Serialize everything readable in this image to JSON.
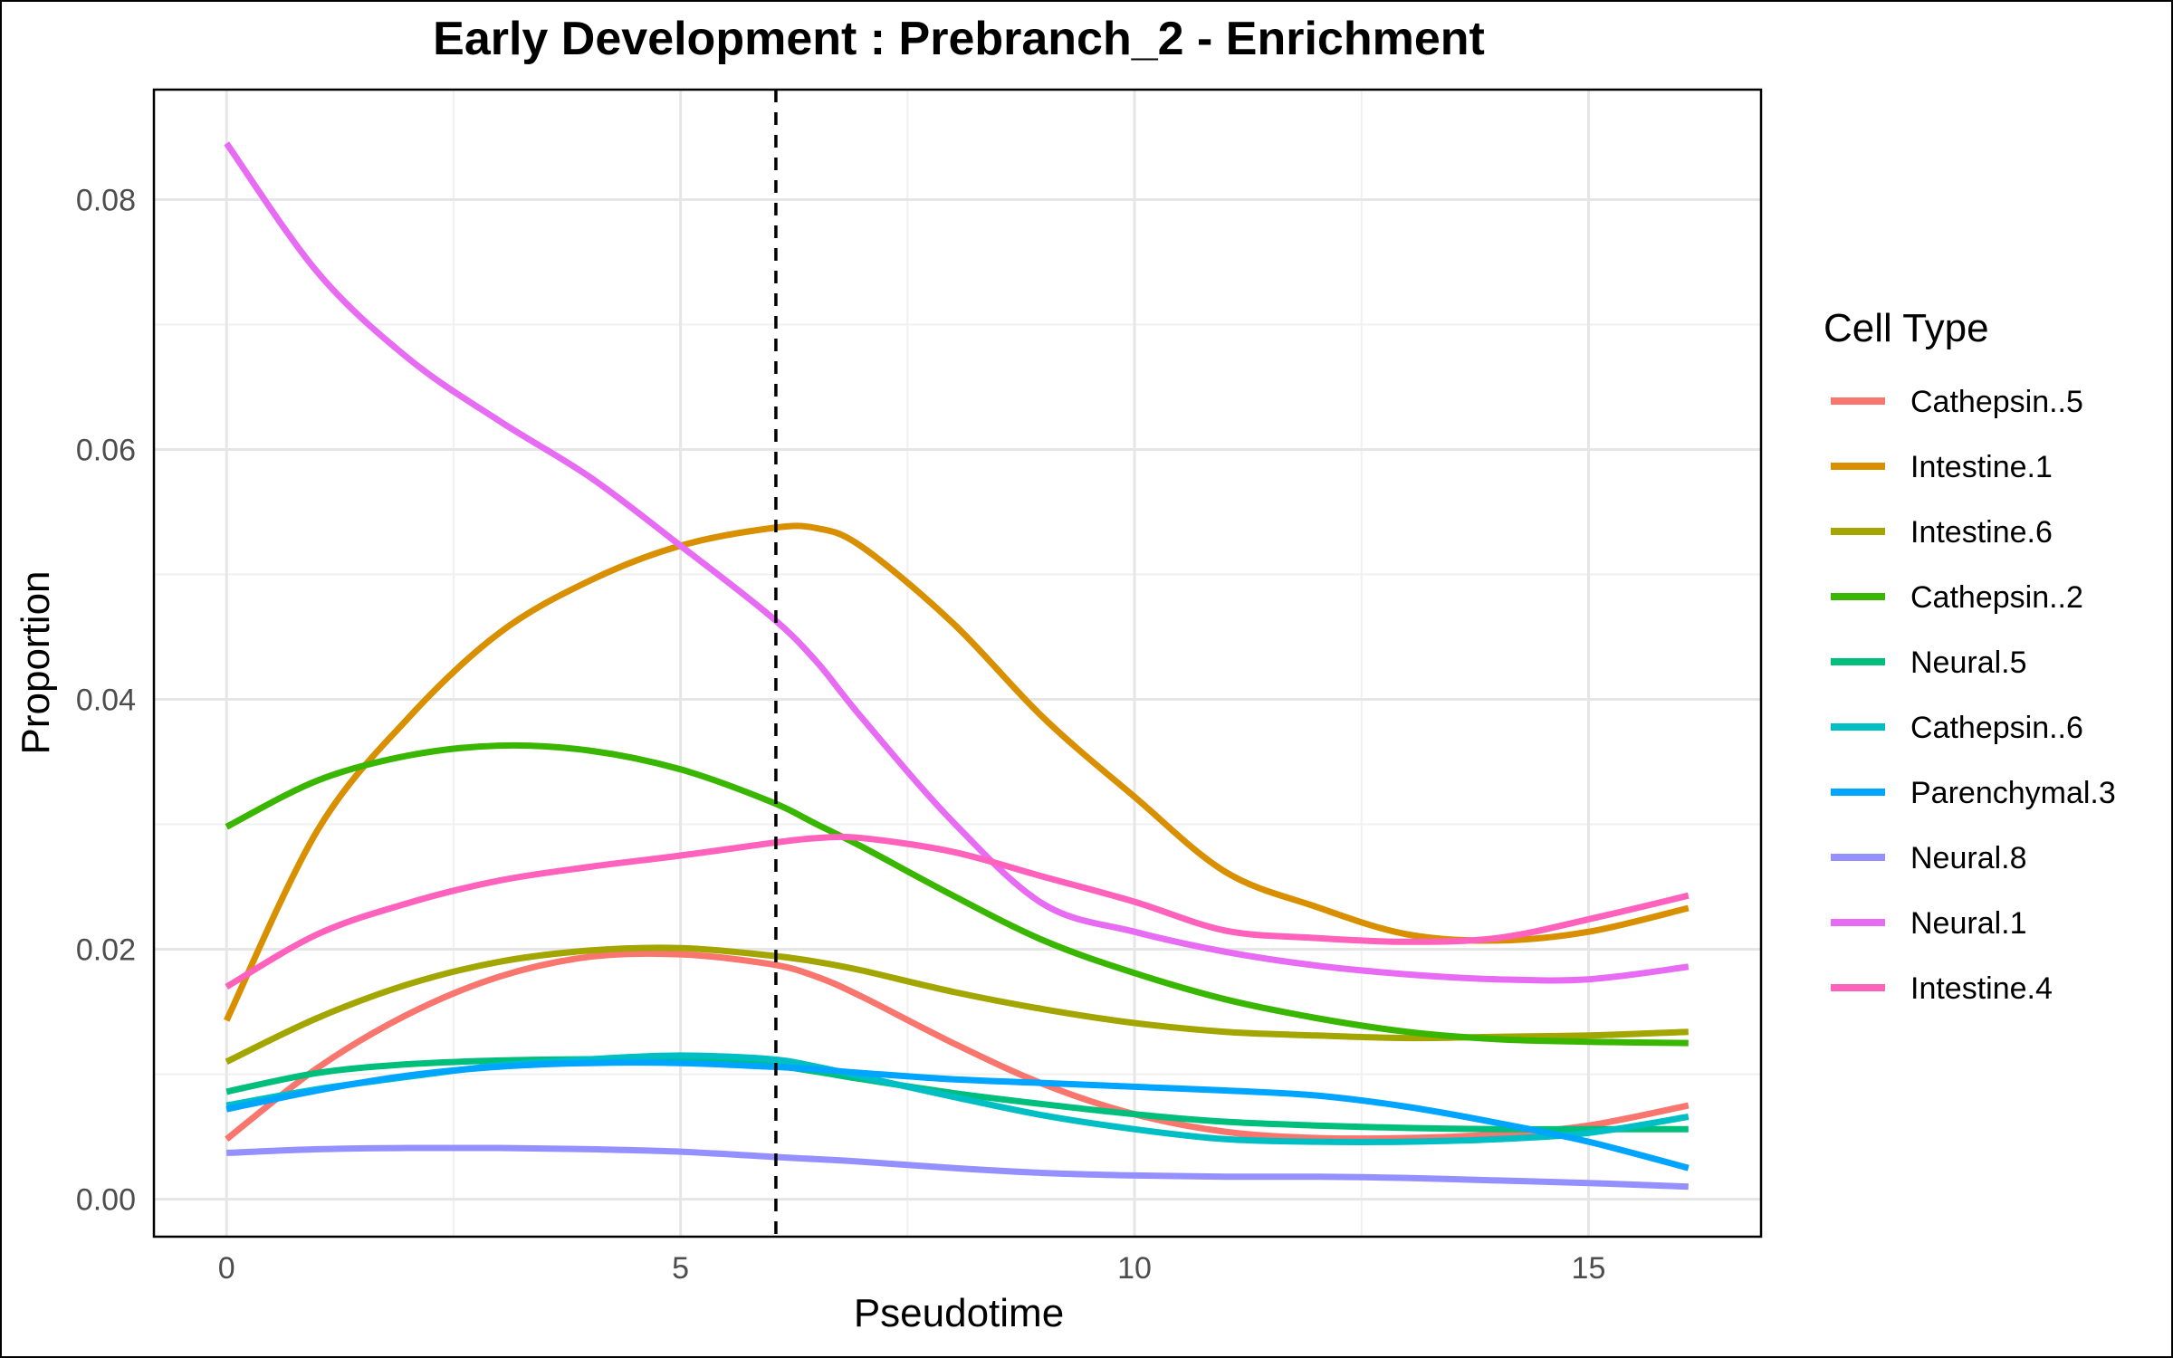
{
  "chart_data": {
    "type": "line",
    "title": "Early Development : Prebranch_2 - Enrichment",
    "xlabel": "Pseudotime",
    "ylabel": "Proportion",
    "xlim": [
      -0.8,
      16.9
    ],
    "ylim": [
      -0.003,
      0.0888
    ],
    "x_ticks": [
      0,
      5,
      10,
      15
    ],
    "x_tick_labels": [
      "0",
      "5",
      "10",
      "15"
    ],
    "y_ticks": [
      0,
      0.02,
      0.04,
      0.06,
      0.08
    ],
    "y_tick_labels": [
      "0.00",
      "0.02",
      "0.04",
      "0.06",
      "0.08"
    ],
    "grid": true,
    "vline": {
      "x": 6.05,
      "style": "dashed"
    },
    "legend": {
      "title": "Cell Type",
      "position": "right"
    },
    "x": [
      0,
      1,
      2,
      3,
      4,
      5,
      6,
      6.5,
      7,
      8,
      9,
      10,
      11,
      12,
      13,
      14,
      15,
      16.1
    ],
    "series": [
      {
        "name": "Cathepsin..5",
        "color": "#F8766D",
        "values": [
          0.0048,
          0.0105,
          0.0148,
          0.0178,
          0.0194,
          0.0196,
          0.0188,
          0.0178,
          0.0162,
          0.0125,
          0.0092,
          0.0068,
          0.0054,
          0.0049,
          0.0049,
          0.0052,
          0.0059,
          0.0075
        ]
      },
      {
        "name": "Intestine.1",
        "color": "#D89000",
        "values": [
          0.0143,
          0.0295,
          0.0385,
          0.0453,
          0.0495,
          0.0523,
          0.0537,
          0.0537,
          0.0522,
          0.0461,
          0.0385,
          0.0322,
          0.0262,
          0.0234,
          0.0212,
          0.0207,
          0.0214,
          0.0233
        ]
      },
      {
        "name": "Intestine.6",
        "color": "#A3A500",
        "values": [
          0.011,
          0.0145,
          0.0172,
          0.019,
          0.0199,
          0.0201,
          0.0195,
          0.019,
          0.0183,
          0.0166,
          0.0152,
          0.0141,
          0.0134,
          0.0131,
          0.0129,
          0.013,
          0.0131,
          0.0134
        ]
      },
      {
        "name": "Cathepsin..2",
        "color": "#39B600",
        "values": [
          0.0298,
          0.0335,
          0.0355,
          0.0363,
          0.0359,
          0.0344,
          0.0318,
          0.03,
          0.0282,
          0.0243,
          0.0207,
          0.0181,
          0.016,
          0.0145,
          0.0134,
          0.0128,
          0.0126,
          0.0125
        ]
      },
      {
        "name": "Neural.5",
        "color": "#00BF7D",
        "values": [
          0.0086,
          0.0101,
          0.0108,
          0.0111,
          0.0112,
          0.0112,
          0.0107,
          0.0102,
          0.0096,
          0.0085,
          0.0076,
          0.0068,
          0.0062,
          0.0059,
          0.0057,
          0.0056,
          0.0056,
          0.0056
        ]
      },
      {
        "name": "Cathepsin..6",
        "color": "#00BFC4",
        "values": [
          0.0075,
          0.0088,
          0.0098,
          0.0107,
          0.0112,
          0.0115,
          0.0112,
          0.0106,
          0.0098,
          0.0082,
          0.0067,
          0.0056,
          0.0048,
          0.0046,
          0.0046,
          0.0048,
          0.0053,
          0.0066
        ]
      },
      {
        "name": "Parenchymal.3",
        "color": "#00A5FF",
        "values": [
          0.0072,
          0.0087,
          0.0099,
          0.0106,
          0.0109,
          0.0109,
          0.0106,
          0.0104,
          0.0101,
          0.0096,
          0.0093,
          0.009,
          0.0087,
          0.0083,
          0.0074,
          0.0061,
          0.0046,
          0.0025
        ]
      },
      {
        "name": "Neural.8",
        "color": "#9590FF",
        "values": [
          0.0037,
          0.004,
          0.0041,
          0.0041,
          0.004,
          0.0038,
          0.0034,
          0.0032,
          0.003,
          0.0025,
          0.0021,
          0.0019,
          0.0018,
          0.0018,
          0.0017,
          0.0015,
          0.0013,
          0.001
        ]
      },
      {
        "name": "Neural.1",
        "color": "#E76BF3",
        "values": [
          0.0845,
          0.0742,
          0.0673,
          0.0623,
          0.0578,
          0.0523,
          0.0466,
          0.043,
          0.0385,
          0.0302,
          0.0236,
          0.0214,
          0.0198,
          0.0187,
          0.018,
          0.0176,
          0.0176,
          0.0186
        ]
      },
      {
        "name": "Intestine.4",
        "color": "#FF62BC",
        "values": [
          0.017,
          0.0212,
          0.0237,
          0.0255,
          0.0266,
          0.0275,
          0.0285,
          0.0289,
          0.0289,
          0.0278,
          0.0258,
          0.0238,
          0.0215,
          0.0209,
          0.0206,
          0.0209,
          0.0224,
          0.0243
        ]
      }
    ]
  }
}
